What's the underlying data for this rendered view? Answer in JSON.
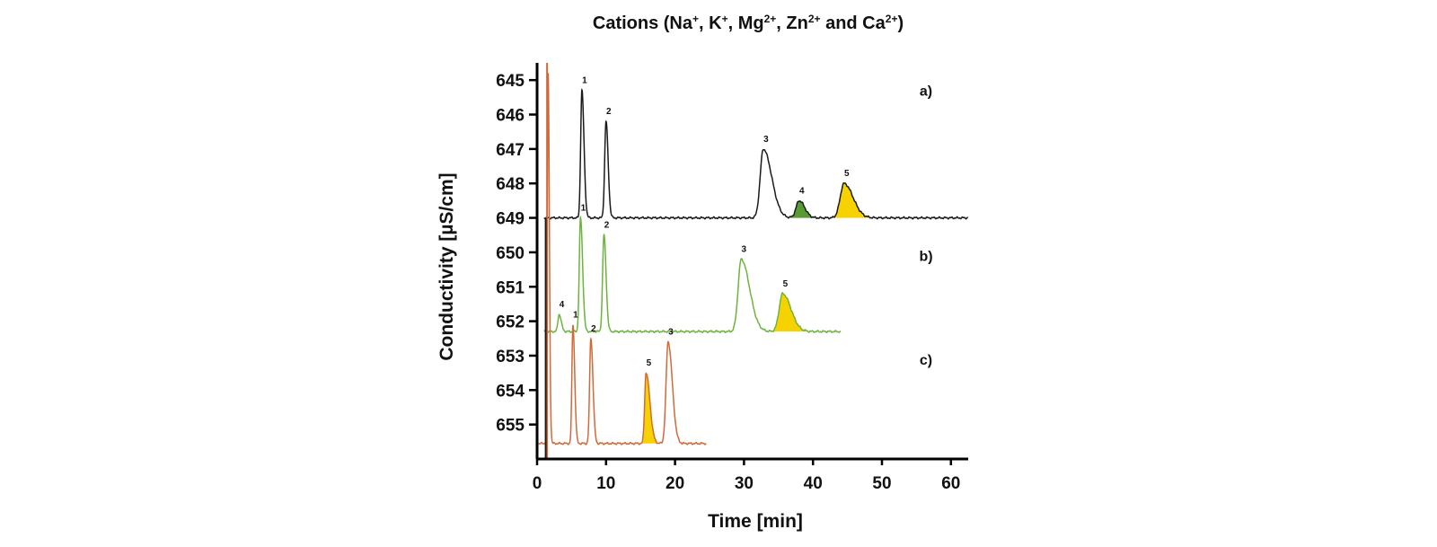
{
  "chart_data": {
    "type": "line",
    "title": {
      "parts": [
        {
          "t": "Cations (Na"
        },
        {
          "t": "+",
          "sup": true
        },
        {
          "t": ", K"
        },
        {
          "t": "+",
          "sup": true
        },
        {
          "t": ", Mg"
        },
        {
          "t": "2+",
          "sup": true
        },
        {
          "t": ", Zn"
        },
        {
          "t": "2+",
          "sup": true
        },
        {
          "t": " and Ca"
        },
        {
          "t": "2+",
          "sup": true
        },
        {
          "t": ")"
        }
      ]
    },
    "xlabel": "Time [min]",
    "ylabel": "Conductivity [µS/cm]",
    "xlim": [
      0,
      62.5
    ],
    "ylim": [
      656,
      644.5
    ],
    "x_ticks": [
      0,
      10,
      20,
      30,
      40,
      50,
      60
    ],
    "y_ticks": [
      645,
      646,
      647,
      648,
      649,
      650,
      651,
      652,
      653,
      654,
      655
    ],
    "grid": false,
    "series": [
      {
        "name": "a)",
        "color": "#1a1a1a",
        "baseline": 649.0,
        "x_range": [
          1.0,
          62.5
        ],
        "peaks": [
          {
            "label": "1",
            "t": 6.5,
            "top": 645.3,
            "wl": 0.18,
            "wr": 0.3,
            "fill": null
          },
          {
            "label": "2",
            "t": 10.0,
            "top": 646.2,
            "wl": 0.2,
            "wr": 0.3,
            "fill": null
          },
          {
            "label": "3",
            "t": 32.8,
            "top": 647.0,
            "wl": 0.45,
            "wr": 1.2,
            "fill": null
          },
          {
            "label": "4",
            "t": 38.0,
            "top": 648.5,
            "wl": 0.45,
            "wr": 0.8,
            "fill": "#5a9a32"
          },
          {
            "label": "5",
            "t": 44.5,
            "top": 648.0,
            "wl": 0.55,
            "wr": 1.3,
            "fill": "#f6d300"
          }
        ]
      },
      {
        "name": "b)",
        "color": "#6db33f",
        "baseline": 652.3,
        "x_range": [
          1.0,
          44.0
        ],
        "peaks": [
          {
            "label": "4",
            "t": 3.2,
            "top": 651.8,
            "wl": 0.18,
            "wr": 0.3,
            "fill": null
          },
          {
            "label": "1",
            "t": 6.3,
            "top": 649.0,
            "wl": 0.18,
            "wr": 0.3,
            "fill": null
          },
          {
            "label": "2",
            "t": 9.7,
            "top": 649.5,
            "wl": 0.2,
            "wr": 0.3,
            "fill": null
          },
          {
            "label": "3",
            "t": 29.6,
            "top": 650.2,
            "wl": 0.45,
            "wr": 1.2,
            "fill": null
          },
          {
            "label": "5",
            "t": 35.6,
            "top": 651.2,
            "wl": 0.5,
            "wr": 1.2,
            "fill": "#f6d300"
          }
        ]
      },
      {
        "name": "c)",
        "color": "#d2693a",
        "baseline": 655.55,
        "x_range": [
          0.2,
          24.5
        ],
        "peaks": [
          {
            "label": "",
            "t": 1.6,
            "top": 644.8,
            "wl": 0.12,
            "wr": 0.18,
            "fill": null
          },
          {
            "label": "1",
            "t": 5.2,
            "top": 652.1,
            "wl": 0.15,
            "wr": 0.25,
            "fill": null
          },
          {
            "label": "2",
            "t": 7.8,
            "top": 652.5,
            "wl": 0.18,
            "wr": 0.3,
            "fill": null
          },
          {
            "label": "5",
            "t": 15.8,
            "top": 653.5,
            "wl": 0.2,
            "wr": 0.55,
            "fill": "#f6d300"
          },
          {
            "label": "3",
            "t": 19.0,
            "top": 652.6,
            "wl": 0.3,
            "wr": 0.6,
            "fill": null
          }
        ]
      }
    ]
  }
}
